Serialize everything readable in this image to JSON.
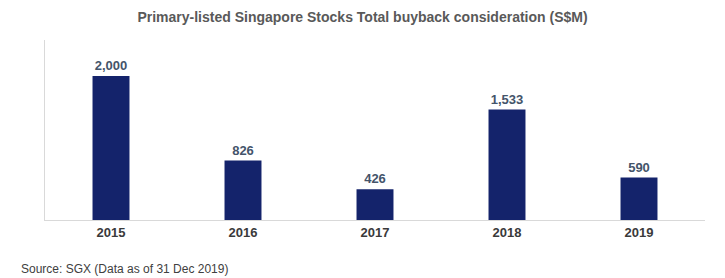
{
  "chart_data": {
    "type": "bar",
    "title": "Primary-listed Singapore Stocks Total buyback consideration (S$M)",
    "categories": [
      "2015",
      "2016",
      "2017",
      "2018",
      "2019"
    ],
    "values": [
      2000,
      826,
      426,
      1533,
      590
    ],
    "value_labels": [
      "2,000",
      "826",
      "426",
      "1,533",
      "590"
    ],
    "color": "#14236b",
    "ylim": [
      0,
      2500
    ],
    "grid": false,
    "data_labels": true,
    "tick_labels": "x",
    "annotations": [
      "Source: SGX (Data as of 31 Dec 2019)"
    ]
  }
}
